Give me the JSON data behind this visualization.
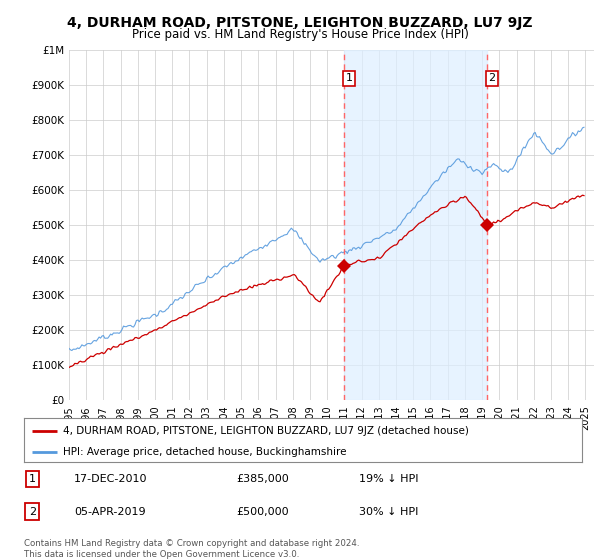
{
  "title": "4, DURHAM ROAD, PITSTONE, LEIGHTON BUZZARD, LU7 9JZ",
  "subtitle": "Price paid vs. HM Land Registry's House Price Index (HPI)",
  "title_fontsize": 10,
  "subtitle_fontsize": 8.5,
  "background_color": "#ffffff",
  "plot_bg_color": "#ffffff",
  "grid_color": "#cccccc",
  "ylim": [
    0,
    1000000
  ],
  "yticks": [
    0,
    100000,
    200000,
    300000,
    400000,
    500000,
    600000,
    700000,
    800000,
    900000,
    1000000
  ],
  "ytick_labels": [
    "£0",
    "£100K",
    "£200K",
    "£300K",
    "£400K",
    "£500K",
    "£600K",
    "£700K",
    "£800K",
    "£900K",
    "£1M"
  ],
  "hpi_color": "#5599dd",
  "hpi_fill_color": "#ddeeff",
  "price_color": "#cc0000",
  "marker_color": "#cc0000",
  "dashed_line_color": "#ff6666",
  "sale1_x": 2010.96,
  "sale1_y": 385000,
  "sale1_label": "1",
  "sale2_x": 2019.27,
  "sale2_y": 500000,
  "sale2_label": "2",
  "legend_address": "4, DURHAM ROAD, PITSTONE, LEIGHTON BUZZARD, LU7 9JZ (detached house)",
  "legend_hpi": "HPI: Average price, detached house, Buckinghamshire",
  "note1_num": "1",
  "note1_date": "17-DEC-2010",
  "note1_price": "£385,000",
  "note1_hpi": "19% ↓ HPI",
  "note2_num": "2",
  "note2_date": "05-APR-2019",
  "note2_price": "£500,000",
  "note2_hpi": "30% ↓ HPI",
  "footer": "Contains HM Land Registry data © Crown copyright and database right 2024.\nThis data is licensed under the Open Government Licence v3.0.",
  "xlim_left": 1995.0,
  "xlim_right": 2025.5
}
